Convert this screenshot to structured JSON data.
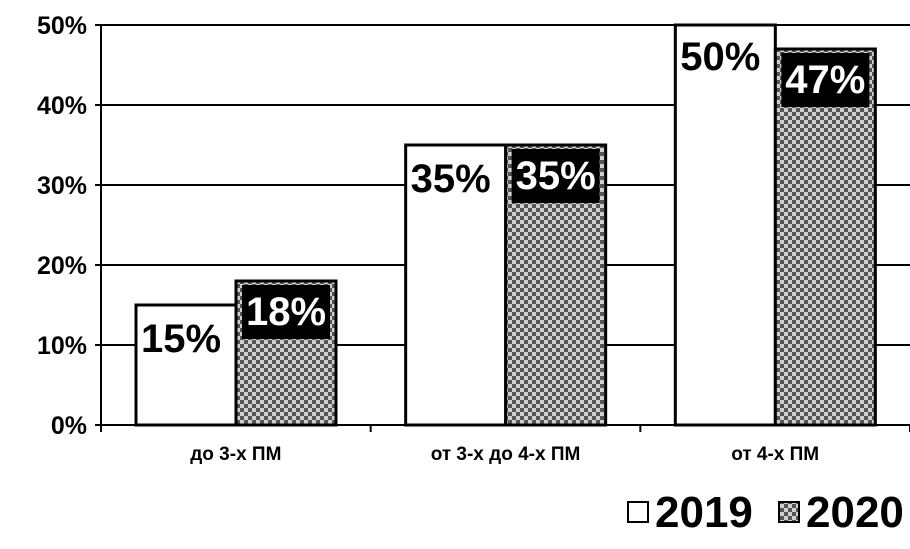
{
  "chart_data": {
    "type": "bar",
    "categories": [
      "до 3-х ПМ",
      "от 3-х до 4-х ПМ",
      "от 4-х ПМ"
    ],
    "series": [
      {
        "name": "2019",
        "values": [
          15,
          35,
          50
        ],
        "labels": [
          "15%",
          "35%",
          "50%"
        ],
        "fill": "#ffffff"
      },
      {
        "name": "2020",
        "values": [
          18,
          35,
          47
        ],
        "labels": [
          "18%",
          "35%",
          "47%"
        ],
        "fill": "checker-grey"
      }
    ],
    "yticks": [
      "0%",
      "10%",
      "20%",
      "30%",
      "40%",
      "50%"
    ],
    "ylim": [
      0,
      50
    ],
    "grid": true,
    "legend": "bottom-right",
    "colors": {
      "bar_outline": "#000000",
      "pattern_dark": "#555555",
      "pattern_light": "#cfcfcf",
      "label_box": "#000000"
    }
  }
}
